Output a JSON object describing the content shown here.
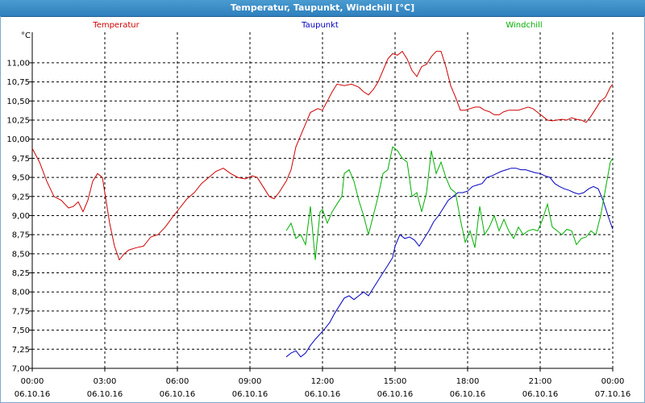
{
  "window": {
    "title": "Temperatur, Taupunkt, Windchill [°C]"
  },
  "chart_data": {
    "type": "line",
    "title": "Temperatur, Taupunkt, Windchill [°C]",
    "ylabel": "°C",
    "xlabel": "",
    "ylim": [
      7.0,
      11.4
    ],
    "xlim": [
      0,
      24
    ],
    "grid": true,
    "legend": "top",
    "y_ticks": [
      "7,00",
      "7,25",
      "7,50",
      "7,75",
      "8,00",
      "8,25",
      "8,50",
      "8,75",
      "9,00",
      "9,25",
      "9,50",
      "9,75",
      "10,00",
      "10,25",
      "10,50",
      "10,75",
      "11,00"
    ],
    "y_tick_values": [
      7.0,
      7.25,
      7.5,
      7.75,
      8.0,
      8.25,
      8.5,
      8.75,
      9.0,
      9.25,
      9.5,
      9.75,
      10.0,
      10.25,
      10.5,
      10.75,
      11.0
    ],
    "x_ticks": [
      {
        "time": "00:00",
        "date": "06.10.16",
        "hour": 0
      },
      {
        "time": "03:00",
        "date": "06.10.16",
        "hour": 3
      },
      {
        "time": "06:00",
        "date": "06.10.16",
        "hour": 6
      },
      {
        "time": "09:00",
        "date": "06.10.16",
        "hour": 9
      },
      {
        "time": "12:00",
        "date": "06.10.16",
        "hour": 12
      },
      {
        "time": "15:00",
        "date": "06.10.16",
        "hour": 15
      },
      {
        "time": "18:00",
        "date": "06.10.16",
        "hour": 18
      },
      {
        "time": "21:00",
        "date": "06.10.16",
        "hour": 21
      },
      {
        "time": "00:00",
        "date": "07.10.16",
        "hour": 24
      }
    ],
    "series": [
      {
        "name": "Temperatur",
        "color": "#d00000",
        "points": [
          [
            0,
            9.88
          ],
          [
            0.3,
            9.7
          ],
          [
            0.6,
            9.45
          ],
          [
            0.9,
            9.25
          ],
          [
            1.2,
            9.2
          ],
          [
            1.5,
            9.1
          ],
          [
            1.7,
            9.12
          ],
          [
            1.9,
            9.18
          ],
          [
            2.1,
            9.05
          ],
          [
            2.3,
            9.2
          ],
          [
            2.5,
            9.45
          ],
          [
            2.7,
            9.55
          ],
          [
            2.9,
            9.5
          ],
          [
            3.0,
            9.3
          ],
          [
            3.2,
            8.9
          ],
          [
            3.4,
            8.6
          ],
          [
            3.6,
            8.42
          ],
          [
            3.8,
            8.5
          ],
          [
            4.0,
            8.55
          ],
          [
            4.3,
            8.58
          ],
          [
            4.6,
            8.6
          ],
          [
            4.9,
            8.72
          ],
          [
            5.2,
            8.75
          ],
          [
            5.5,
            8.85
          ],
          [
            5.8,
            8.98
          ],
          [
            6.1,
            9.1
          ],
          [
            6.4,
            9.22
          ],
          [
            6.7,
            9.3
          ],
          [
            7.0,
            9.42
          ],
          [
            7.3,
            9.5
          ],
          [
            7.6,
            9.58
          ],
          [
            7.9,
            9.62
          ],
          [
            8.2,
            9.55
          ],
          [
            8.5,
            9.5
          ],
          [
            8.8,
            9.48
          ],
          [
            9.1,
            9.52
          ],
          [
            9.3,
            9.5
          ],
          [
            9.6,
            9.35
          ],
          [
            9.8,
            9.25
          ],
          [
            10.0,
            9.22
          ],
          [
            10.2,
            9.3
          ],
          [
            10.5,
            9.45
          ],
          [
            10.7,
            9.6
          ],
          [
            10.9,
            9.9
          ],
          [
            11.1,
            10.05
          ],
          [
            11.3,
            10.2
          ],
          [
            11.5,
            10.35
          ],
          [
            11.8,
            10.4
          ],
          [
            12.0,
            10.38
          ],
          [
            12.2,
            10.5
          ],
          [
            12.4,
            10.62
          ],
          [
            12.6,
            10.72
          ],
          [
            12.9,
            10.7
          ],
          [
            13.2,
            10.72
          ],
          [
            13.5,
            10.68
          ],
          [
            13.7,
            10.62
          ],
          [
            13.9,
            10.58
          ],
          [
            14.1,
            10.65
          ],
          [
            14.3,
            10.75
          ],
          [
            14.5,
            10.9
          ],
          [
            14.7,
            11.05
          ],
          [
            14.9,
            11.12
          ],
          [
            15.1,
            11.1
          ],
          [
            15.3,
            11.15
          ],
          [
            15.5,
            11.05
          ],
          [
            15.7,
            10.9
          ],
          [
            15.9,
            10.82
          ],
          [
            16.1,
            10.95
          ],
          [
            16.3,
            10.98
          ],
          [
            16.5,
            11.08
          ],
          [
            16.7,
            11.15
          ],
          [
            16.9,
            11.15
          ],
          [
            17.1,
            10.95
          ],
          [
            17.3,
            10.7
          ],
          [
            17.5,
            10.55
          ],
          [
            17.7,
            10.38
          ],
          [
            17.9,
            10.38
          ],
          [
            18.1,
            10.4
          ],
          [
            18.3,
            10.42
          ],
          [
            18.5,
            10.42
          ],
          [
            18.7,
            10.38
          ],
          [
            18.9,
            10.36
          ],
          [
            19.1,
            10.32
          ],
          [
            19.3,
            10.32
          ],
          [
            19.5,
            10.36
          ],
          [
            19.7,
            10.38
          ],
          [
            19.9,
            10.38
          ],
          [
            20.1,
            10.38
          ],
          [
            20.3,
            10.4
          ],
          [
            20.5,
            10.42
          ],
          [
            20.7,
            10.4
          ],
          [
            20.9,
            10.35
          ],
          [
            21.1,
            10.3
          ],
          [
            21.3,
            10.25
          ],
          [
            21.5,
            10.24
          ],
          [
            21.7,
            10.25
          ],
          [
            21.9,
            10.26
          ],
          [
            22.1,
            10.25
          ],
          [
            22.3,
            10.28
          ],
          [
            22.5,
            10.26
          ],
          [
            22.7,
            10.25
          ],
          [
            22.9,
            10.22
          ],
          [
            23.1,
            10.3
          ],
          [
            23.3,
            10.4
          ],
          [
            23.5,
            10.5
          ],
          [
            23.7,
            10.55
          ],
          [
            23.9,
            10.68
          ],
          [
            24.0,
            10.72
          ]
        ]
      },
      {
        "name": "Taupunkt",
        "color": "#0000c0",
        "points": [
          [
            10.5,
            7.15
          ],
          [
            10.7,
            7.2
          ],
          [
            10.9,
            7.23
          ],
          [
            11.1,
            7.15
          ],
          [
            11.3,
            7.2
          ],
          [
            11.5,
            7.3
          ],
          [
            11.7,
            7.38
          ],
          [
            11.9,
            7.45
          ],
          [
            12.1,
            7.52
          ],
          [
            12.3,
            7.6
          ],
          [
            12.5,
            7.72
          ],
          [
            12.7,
            7.82
          ],
          [
            12.9,
            7.92
          ],
          [
            13.1,
            7.95
          ],
          [
            13.3,
            7.9
          ],
          [
            13.5,
            7.95
          ],
          [
            13.7,
            8.0
          ],
          [
            13.9,
            7.95
          ],
          [
            14.1,
            8.05
          ],
          [
            14.3,
            8.15
          ],
          [
            14.5,
            8.25
          ],
          [
            14.7,
            8.35
          ],
          [
            14.9,
            8.45
          ],
          [
            15.0,
            8.6
          ],
          [
            15.2,
            8.75
          ],
          [
            15.4,
            8.7
          ],
          [
            15.6,
            8.72
          ],
          [
            15.8,
            8.68
          ],
          [
            16.0,
            8.6
          ],
          [
            16.2,
            8.7
          ],
          [
            16.4,
            8.8
          ],
          [
            16.6,
            8.92
          ],
          [
            16.8,
            9.0
          ],
          [
            17.0,
            9.1
          ],
          [
            17.2,
            9.2
          ],
          [
            17.4,
            9.25
          ],
          [
            17.6,
            9.3
          ],
          [
            17.8,
            9.3
          ],
          [
            18.0,
            9.32
          ],
          [
            18.2,
            9.38
          ],
          [
            18.4,
            9.4
          ],
          [
            18.6,
            9.42
          ],
          [
            18.8,
            9.5
          ],
          [
            19.0,
            9.52
          ],
          [
            19.2,
            9.55
          ],
          [
            19.4,
            9.58
          ],
          [
            19.6,
            9.6
          ],
          [
            19.8,
            9.62
          ],
          [
            20.0,
            9.62
          ],
          [
            20.2,
            9.6
          ],
          [
            20.4,
            9.6
          ],
          [
            20.6,
            9.58
          ],
          [
            20.8,
            9.56
          ],
          [
            21.0,
            9.55
          ],
          [
            21.2,
            9.52
          ],
          [
            21.4,
            9.5
          ],
          [
            21.6,
            9.42
          ],
          [
            21.8,
            9.38
          ],
          [
            22.0,
            9.35
          ],
          [
            22.2,
            9.33
          ],
          [
            22.4,
            9.3
          ],
          [
            22.6,
            9.28
          ],
          [
            22.8,
            9.3
          ],
          [
            23.0,
            9.35
          ],
          [
            23.2,
            9.38
          ],
          [
            23.4,
            9.35
          ],
          [
            23.6,
            9.2
          ],
          [
            23.8,
            9.0
          ],
          [
            24.0,
            8.82
          ]
        ]
      },
      {
        "name": "Windchill",
        "color": "#00b000",
        "points": [
          [
            10.5,
            8.8
          ],
          [
            10.7,
            8.9
          ],
          [
            10.9,
            8.7
          ],
          [
            11.1,
            8.75
          ],
          [
            11.3,
            8.62
          ],
          [
            11.5,
            9.12
          ],
          [
            11.7,
            8.42
          ],
          [
            11.9,
            9.05
          ],
          [
            12.0,
            9.08
          ],
          [
            12.2,
            8.9
          ],
          [
            12.4,
            9.05
          ],
          [
            12.6,
            9.15
          ],
          [
            12.8,
            9.25
          ],
          [
            12.9,
            9.55
          ],
          [
            13.1,
            9.6
          ],
          [
            13.3,
            9.45
          ],
          [
            13.5,
            9.2
          ],
          [
            13.7,
            9.0
          ],
          [
            13.9,
            8.75
          ],
          [
            14.1,
            9.0
          ],
          [
            14.3,
            9.25
          ],
          [
            14.5,
            9.55
          ],
          [
            14.7,
            9.6
          ],
          [
            14.9,
            9.9
          ],
          [
            15.1,
            9.85
          ],
          [
            15.3,
            9.75
          ],
          [
            15.5,
            9.7
          ],
          [
            15.7,
            9.25
          ],
          [
            15.9,
            9.3
          ],
          [
            16.1,
            9.05
          ],
          [
            16.3,
            9.3
          ],
          [
            16.5,
            9.85
          ],
          [
            16.7,
            9.55
          ],
          [
            16.9,
            9.7
          ],
          [
            17.1,
            9.5
          ],
          [
            17.3,
            9.35
          ],
          [
            17.5,
            9.3
          ],
          [
            17.7,
            8.95
          ],
          [
            17.9,
            8.65
          ],
          [
            18.1,
            8.8
          ],
          [
            18.3,
            8.58
          ],
          [
            18.5,
            9.12
          ],
          [
            18.7,
            8.75
          ],
          [
            18.9,
            8.85
          ],
          [
            19.1,
            9.0
          ],
          [
            19.3,
            8.8
          ],
          [
            19.5,
            8.95
          ],
          [
            19.7,
            8.8
          ],
          [
            19.9,
            8.7
          ],
          [
            20.1,
            8.85
          ],
          [
            20.3,
            8.75
          ],
          [
            20.5,
            8.8
          ],
          [
            20.7,
            8.82
          ],
          [
            20.9,
            8.8
          ],
          [
            21.1,
            8.95
          ],
          [
            21.3,
            9.15
          ],
          [
            21.5,
            8.85
          ],
          [
            21.7,
            8.8
          ],
          [
            21.9,
            8.75
          ],
          [
            22.1,
            8.82
          ],
          [
            22.3,
            8.8
          ],
          [
            22.5,
            8.62
          ],
          [
            22.7,
            8.7
          ],
          [
            22.9,
            8.72
          ],
          [
            23.1,
            8.8
          ],
          [
            23.3,
            8.75
          ],
          [
            23.5,
            9.0
          ],
          [
            23.7,
            9.35
          ],
          [
            23.9,
            9.7
          ],
          [
            24.0,
            9.75
          ]
        ]
      }
    ]
  }
}
